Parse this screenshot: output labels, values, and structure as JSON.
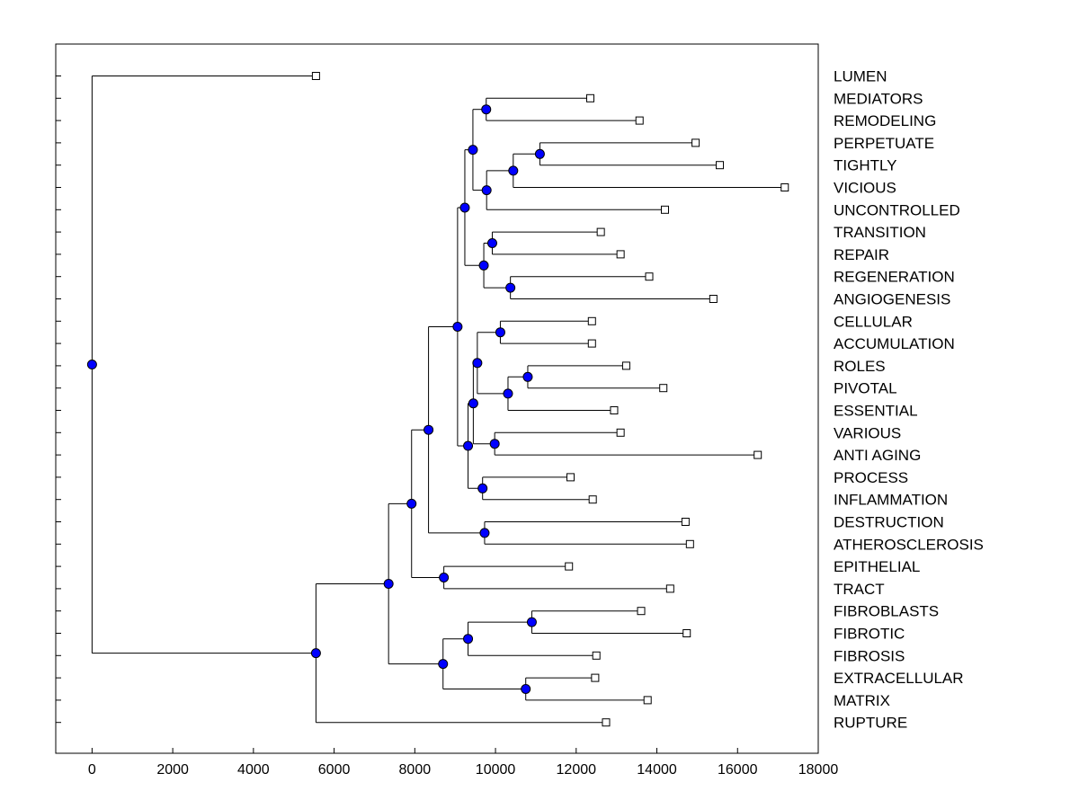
{
  "chart_data": {
    "type": "dendrogram",
    "orientation": "horizontal",
    "title": "",
    "xlabel": "",
    "ylabel": "",
    "xlim": [
      -900,
      18000
    ],
    "xticks": [
      0,
      2000,
      4000,
      6000,
      8000,
      10000,
      12000,
      14000,
      16000,
      18000
    ],
    "tick_labels": [
      "0",
      "2000",
      "4000",
      "6000",
      "8000",
      "10000",
      "12000",
      "14000",
      "16000",
      "18000"
    ],
    "leaves": [
      {
        "id": "LUMEN",
        "label": "LUMEN",
        "x": 5550
      },
      {
        "id": "MEDIATORS",
        "label": "MEDIATORS",
        "x": 12350
      },
      {
        "id": "REMODELING",
        "label": "REMODELING",
        "x": 13570
      },
      {
        "id": "PERPETUATE",
        "label": "PERPETUATE",
        "x": 14960
      },
      {
        "id": "TIGHTLY",
        "label": "TIGHTLY",
        "x": 15560
      },
      {
        "id": "VICIOUS",
        "label": "VICIOUS",
        "x": 17170
      },
      {
        "id": "UNCONTROLLED",
        "label": "UNCONTROLLED",
        "x": 14200
      },
      {
        "id": "TRANSITION",
        "label": "TRANSITION",
        "x": 12610
      },
      {
        "id": "REPAIR",
        "label": "REPAIR",
        "x": 13100
      },
      {
        "id": "REGENERATION",
        "label": "REGENERATION",
        "x": 13810
      },
      {
        "id": "ANGIOGENESIS",
        "label": "ANGIOGENESIS",
        "x": 15400
      },
      {
        "id": "CELLULAR",
        "label": "CELLULAR",
        "x": 12390
      },
      {
        "id": "ACCUMULATION",
        "label": "ACCUMULATION",
        "x": 12390
      },
      {
        "id": "ROLES",
        "label": "ROLES",
        "x": 13240
      },
      {
        "id": "PIVOTAL",
        "label": "PIVOTAL",
        "x": 14160
      },
      {
        "id": "ESSENTIAL",
        "label": "ESSENTIAL",
        "x": 12940
      },
      {
        "id": "VARIOUS",
        "label": "VARIOUS",
        "x": 13100
      },
      {
        "id": "ANTI_AGING",
        "label": "ANTI AGING",
        "x": 16500
      },
      {
        "id": "PROCESS",
        "label": "PROCESS",
        "x": 11860
      },
      {
        "id": "INFLAMMATION",
        "label": "INFLAMMATION",
        "x": 12410
      },
      {
        "id": "DESTRUCTION",
        "label": "DESTRUCTION",
        "x": 14710
      },
      {
        "id": "ATHEROSCLEROSIS",
        "label": "ATHEROSCLEROSIS",
        "x": 14820
      },
      {
        "id": "EPITHELIAL",
        "label": "EPITHELIAL",
        "x": 11820
      },
      {
        "id": "TRACT",
        "label": "TRACT",
        "x": 14330
      },
      {
        "id": "FIBROBLASTS",
        "label": "FIBROBLASTS",
        "x": 13610
      },
      {
        "id": "FIBROTIC",
        "label": "FIBROTIC",
        "x": 14740
      },
      {
        "id": "FIBROSIS",
        "label": "FIBROSIS",
        "x": 12500
      },
      {
        "id": "EXTRACELLULAR",
        "label": "EXTRACELLULAR",
        "x": 12470
      },
      {
        "id": "MATRIX",
        "label": "MATRIX",
        "x": 13770
      },
      {
        "id": "RUPTURE",
        "label": "RUPTURE",
        "x": 12740
      }
    ],
    "merges": [
      {
        "id": "m_med_rem",
        "x": 9770,
        "children": [
          "MEDIATORS",
          "REMODELING"
        ]
      },
      {
        "id": "m_perp_tight",
        "x": 11100,
        "children": [
          "PERPETUATE",
          "TIGHTLY"
        ]
      },
      {
        "id": "m_pt_vicious",
        "x": 10440,
        "children": [
          "m_perp_tight",
          "VICIOUS"
        ]
      },
      {
        "id": "m_ptv_uncontrolled",
        "x": 9780,
        "children": [
          "m_pt_vicious",
          "UNCONTROLLED"
        ]
      },
      {
        "id": "m_mr_ptvu",
        "x": 9440,
        "children": [
          "m_med_rem",
          "m_ptv_uncontrolled"
        ]
      },
      {
        "id": "m_trans_repair",
        "x": 9920,
        "children": [
          "TRANSITION",
          "REPAIR"
        ]
      },
      {
        "id": "m_regen_angio",
        "x": 10370,
        "children": [
          "REGENERATION",
          "ANGIOGENESIS"
        ]
      },
      {
        "id": "m_tr_ra",
        "x": 9710,
        "children": [
          "m_trans_repair",
          "m_regen_angio"
        ]
      },
      {
        "id": "m_upper",
        "x": 9240,
        "children": [
          "m_mr_ptvu",
          "m_tr_ra"
        ]
      },
      {
        "id": "m_cell_accum",
        "x": 10120,
        "children": [
          "CELLULAR",
          "ACCUMULATION"
        ]
      },
      {
        "id": "m_roles_pivotal",
        "x": 10800,
        "children": [
          "ROLES",
          "PIVOTAL"
        ]
      },
      {
        "id": "m_rp_essential",
        "x": 10310,
        "children": [
          "m_roles_pivotal",
          "ESSENTIAL"
        ]
      },
      {
        "id": "m_ca_rpe",
        "x": 9550,
        "children": [
          "m_cell_accum",
          "m_rp_essential"
        ]
      },
      {
        "id": "m_various_anti",
        "x": 9980,
        "children": [
          "VARIOUS",
          "ANTI_AGING"
        ]
      },
      {
        "id": "m_carpe_va",
        "x": 9450,
        "children": [
          "m_ca_rpe",
          "m_various_anti"
        ]
      },
      {
        "id": "m_proc_inflam",
        "x": 9680,
        "children": [
          "PROCESS",
          "INFLAMMATION"
        ]
      },
      {
        "id": "m_mid",
        "x": 9320,
        "children": [
          "m_carpe_va",
          "m_proc_inflam"
        ]
      },
      {
        "id": "m_upper_mid",
        "x": 9060,
        "children": [
          "m_upper",
          "m_mid"
        ]
      },
      {
        "id": "m_destr_ather",
        "x": 9730,
        "children": [
          "DESTRUCTION",
          "ATHEROSCLEROSIS"
        ]
      },
      {
        "id": "m_um_da",
        "x": 8340,
        "children": [
          "m_upper_mid",
          "m_destr_ather"
        ]
      },
      {
        "id": "m_epi_tract",
        "x": 8720,
        "children": [
          "EPITHELIAL",
          "TRACT"
        ]
      },
      {
        "id": "m_um_da_et",
        "x": 7920,
        "children": [
          "m_um_da",
          "m_epi_tract"
        ]
      },
      {
        "id": "m_fibroblasts_fibrotic",
        "x": 10900,
        "children": [
          "FIBROBLASTS",
          "FIBROTIC"
        ]
      },
      {
        "id": "m_ff_fibrosis",
        "x": 9320,
        "children": [
          "m_fibroblasts_fibrotic",
          "FIBROSIS"
        ]
      },
      {
        "id": "m_extra_matrix",
        "x": 10750,
        "children": [
          "EXTRACELLULAR",
          "MATRIX"
        ]
      },
      {
        "id": "m_fff_em",
        "x": 8700,
        "children": [
          "m_ff_fibrosis",
          "m_extra_matrix"
        ]
      },
      {
        "id": "m_big",
        "x": 7350,
        "children": [
          "m_um_da_et",
          "m_fff_em"
        ]
      },
      {
        "id": "m_big_rupture",
        "x": 5550,
        "children": [
          "m_big",
          "RUPTURE"
        ]
      },
      {
        "id": "m_root",
        "x": 0,
        "children": [
          "LUMEN",
          "m_big_rupture"
        ]
      }
    ],
    "colors": {
      "node_fill": "#0000ff",
      "node_stroke": "#000000",
      "leaf_fill": "#ffffff",
      "line": "#000000"
    }
  }
}
